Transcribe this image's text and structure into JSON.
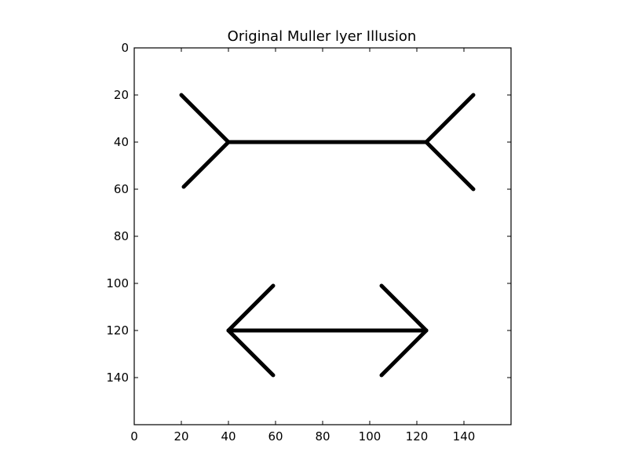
{
  "chart_data": {
    "type": "image",
    "title": "Original Muller lyer Illusion",
    "xlabel": "",
    "ylabel": "",
    "xlim": [
      0,
      160
    ],
    "ylim": [
      160,
      0
    ],
    "y_inverted": true,
    "grid": false,
    "xticks": [
      0,
      20,
      40,
      60,
      80,
      100,
      120,
      140
    ],
    "yticks": [
      0,
      20,
      40,
      60,
      80,
      100,
      120,
      140
    ],
    "ink_color": "#000000",
    "background_color": "#ffffff",
    "figures": [
      {
        "name": "fins-outward",
        "segments": [
          [
            [
              40,
              40
            ],
            [
              124,
              40
            ]
          ],
          [
            [
              40,
              40
            ],
            [
              20,
              20
            ]
          ],
          [
            [
              40,
              40
            ],
            [
              21,
              59
            ]
          ],
          [
            [
              124,
              40
            ],
            [
              144,
              20
            ]
          ],
          [
            [
              124,
              40
            ],
            [
              144,
              60
            ]
          ]
        ]
      },
      {
        "name": "arrowheads-inward",
        "segments": [
          [
            [
              40,
              120
            ],
            [
              124,
              120
            ]
          ],
          [
            [
              40,
              120
            ],
            [
              59,
              101
            ]
          ],
          [
            [
              40,
              120
            ],
            [
              59,
              139
            ]
          ],
          [
            [
              124,
              120
            ],
            [
              105,
              101
            ]
          ],
          [
            [
              124,
              120
            ],
            [
              105,
              139
            ]
          ]
        ]
      }
    ]
  }
}
